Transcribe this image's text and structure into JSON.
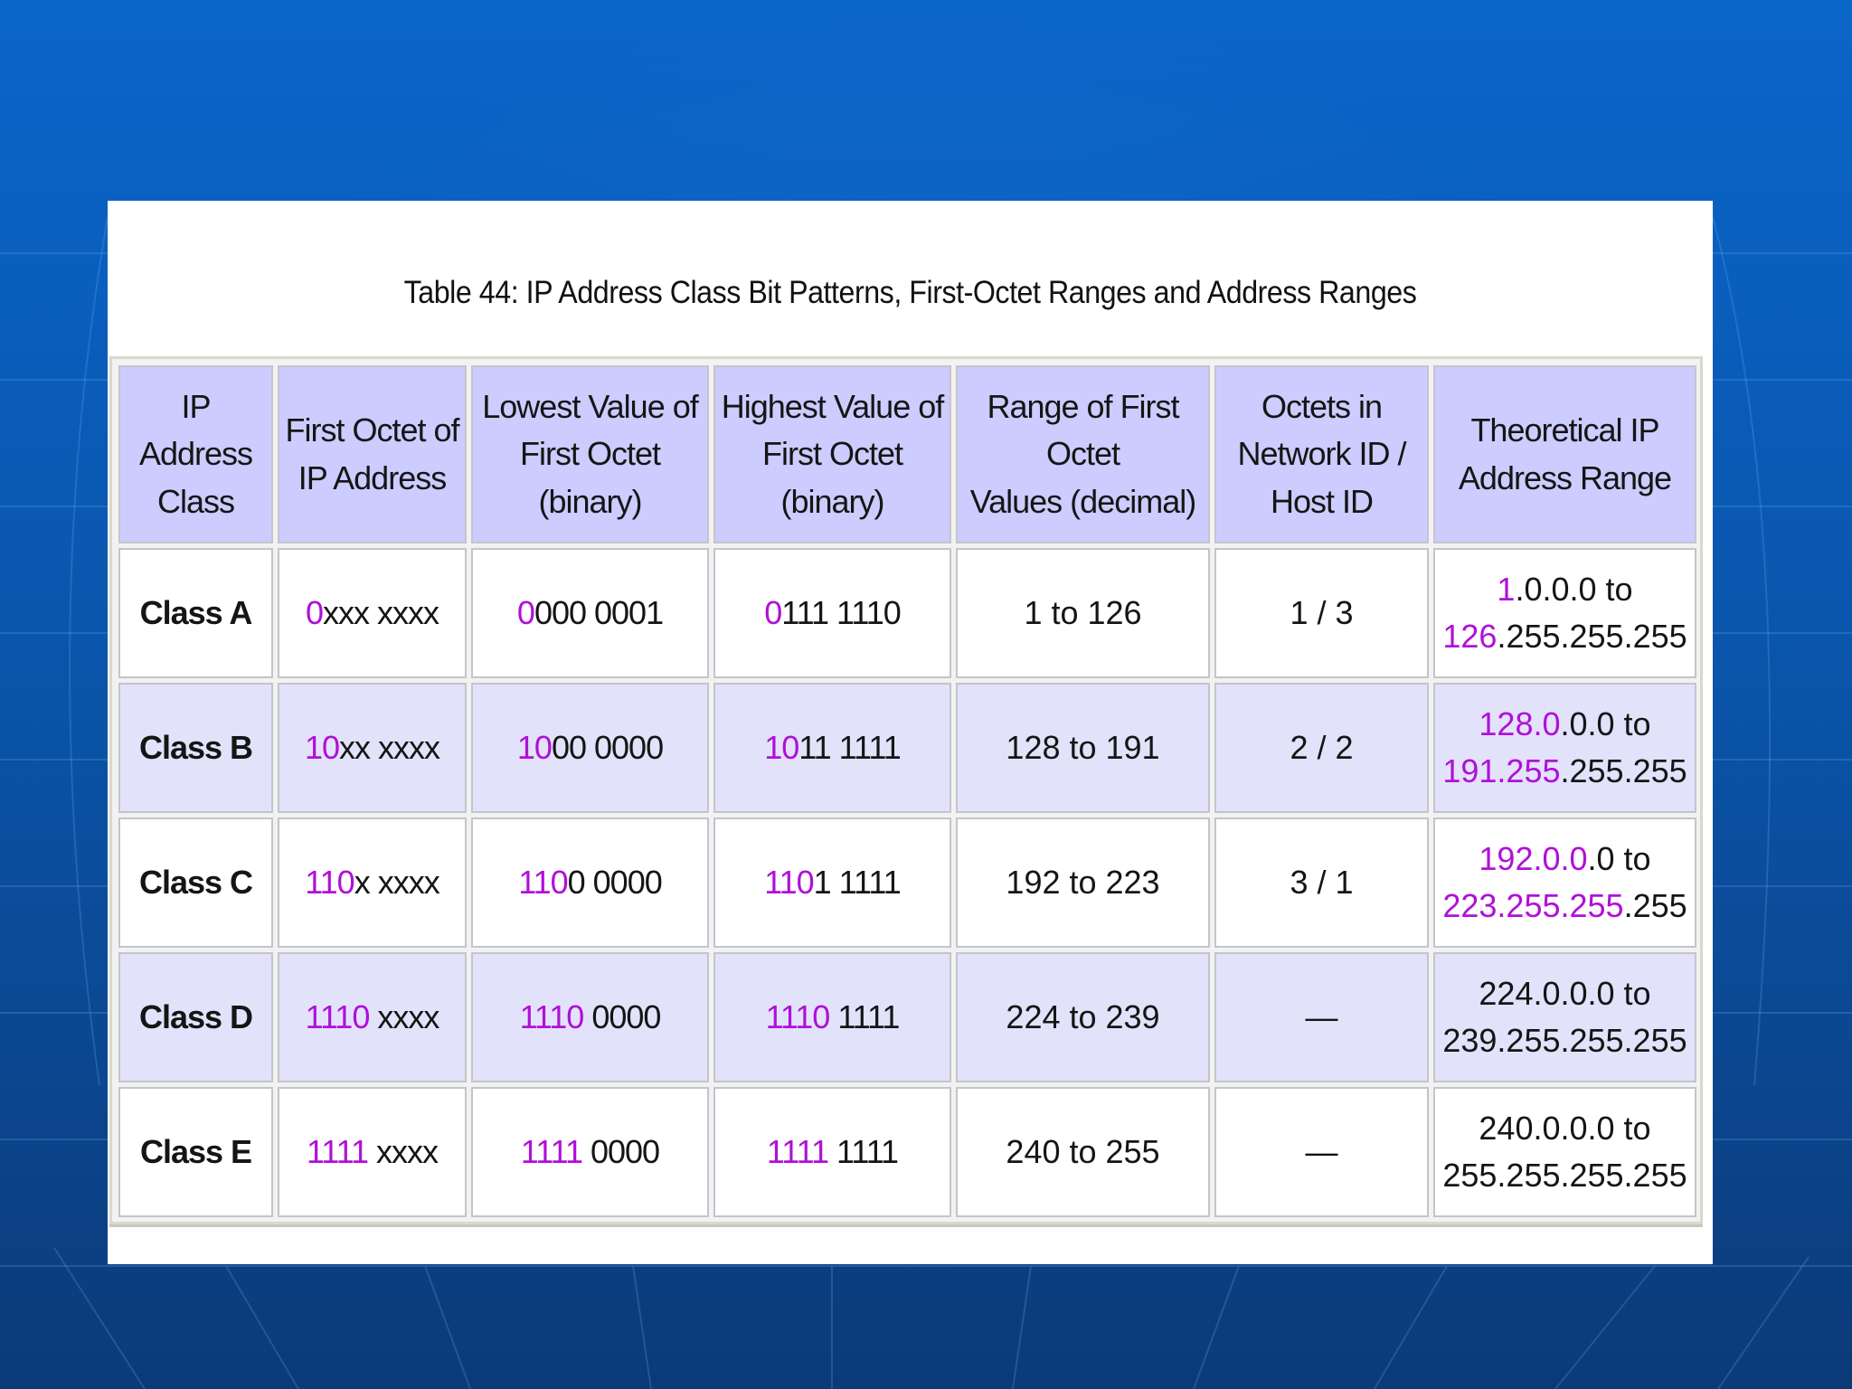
{
  "caption": "Table 44: IP Address Class Bit Patterns, First-Octet Ranges and Address Ranges",
  "colors": {
    "highlight": "#b010d8",
    "header_bg": "#ccccff",
    "row_alt_bg": "#e2e2fb",
    "slide_bg": "#0a5fbf"
  },
  "headers": [
    [
      "IP Address",
      "Class"
    ],
    [
      "First Octet of",
      "IP Address"
    ],
    [
      "Lowest Value of",
      "First Octet (binary)"
    ],
    [
      "Highest Value of",
      "First Octet (binary)"
    ],
    [
      "Range of First Octet",
      "Values (decimal)"
    ],
    [
      "Octets in",
      "Network ID /",
      "Host ID"
    ],
    [
      "Theoretical IP",
      "Address Range"
    ]
  ],
  "rows": [
    {
      "class": "Class A",
      "first_octet": {
        "hl": "0",
        "rest": "xxx xxxx"
      },
      "lowest": {
        "hl": "0",
        "rest": "000 0001"
      },
      "highest": {
        "hl": "0",
        "rest": "111 1110"
      },
      "range": "1 to 126",
      "octets": "1 / 3",
      "address_range": {
        "line1_hl": "1",
        "line1_rest": ".0.0.0 to",
        "line2_hl": "126",
        "line2_rest": ".255.255.255"
      }
    },
    {
      "class": "Class B",
      "first_octet": {
        "hl": "10",
        "rest": "xx xxxx"
      },
      "lowest": {
        "hl": "10",
        "rest": "00 0000"
      },
      "highest": {
        "hl": "10",
        "rest": "11 1111"
      },
      "range": "128 to 191",
      "octets": "2 / 2",
      "address_range": {
        "line1_hl": "128.0",
        "line1_rest": ".0.0 to",
        "line2_hl": "191.255",
        "line2_rest": ".255.255"
      }
    },
    {
      "class": "Class C",
      "first_octet": {
        "hl": "110",
        "rest": "x xxxx"
      },
      "lowest": {
        "hl": "110",
        "rest": "0 0000"
      },
      "highest": {
        "hl": "110",
        "rest": "1 1111"
      },
      "range": "192 to 223",
      "octets": "3 / 1",
      "address_range": {
        "line1_hl": "192.0.0",
        "line1_rest": ".0 to",
        "line2_hl": "223.255.255",
        "line2_rest": ".255"
      }
    },
    {
      "class": "Class D",
      "first_octet": {
        "hl": "1110",
        "rest": " xxxx"
      },
      "lowest": {
        "hl": "1110",
        "rest": " 0000"
      },
      "highest": {
        "hl": "1110",
        "rest": " 1111"
      },
      "range": "224 to 239",
      "octets": "—",
      "address_range": {
        "line1_hl": "",
        "line1_rest": "224.0.0.0 to",
        "line2_hl": "",
        "line2_rest": "239.255.255.255"
      }
    },
    {
      "class": "Class E",
      "first_octet": {
        "hl": "1111",
        "rest": " xxxx"
      },
      "lowest": {
        "hl": "1111",
        "rest": " 0000"
      },
      "highest": {
        "hl": "1111",
        "rest": " 1111"
      },
      "range": "240 to 255",
      "octets": "—",
      "address_range": {
        "line1_hl": "",
        "line1_rest": "240.0.0.0 to",
        "line2_hl": "",
        "line2_rest": "255.255.255.255"
      }
    }
  ]
}
